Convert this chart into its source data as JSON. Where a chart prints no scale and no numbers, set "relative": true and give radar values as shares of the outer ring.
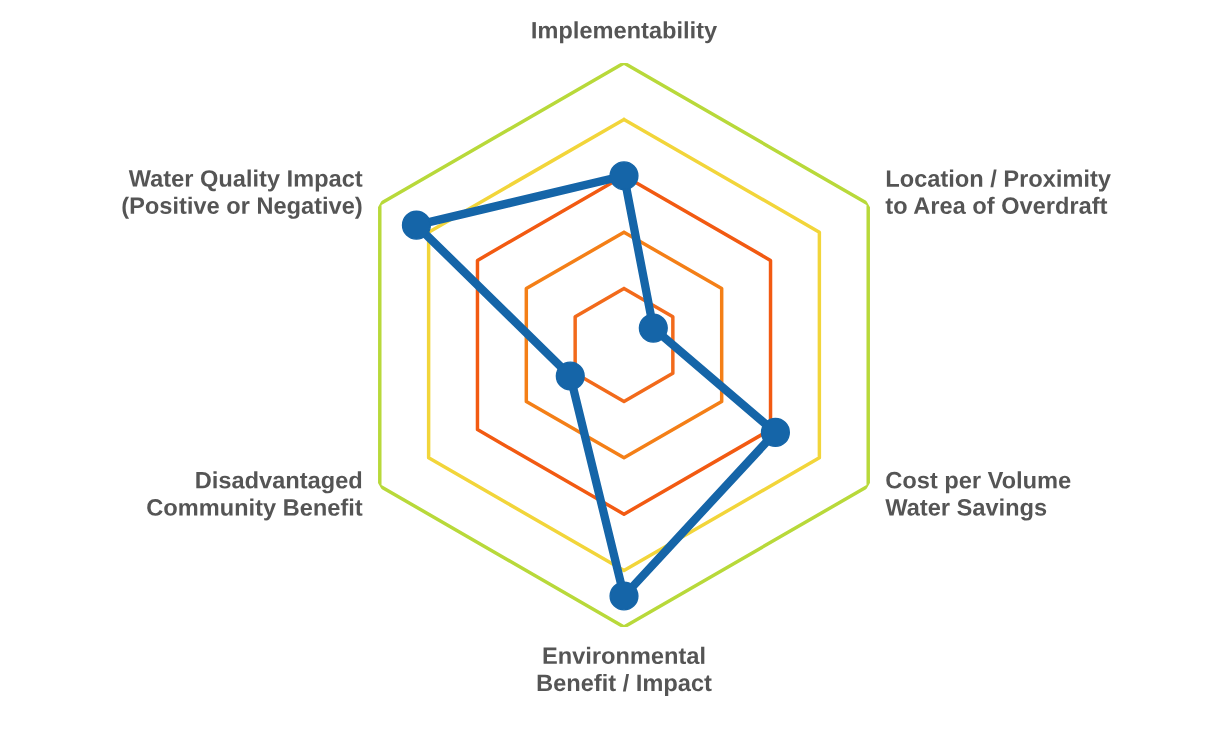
{
  "chart_data": {
    "type": "radar",
    "relative": true,
    "categories": [
      "Implementability",
      "Location / Proximity\nto Area of Overdraft",
      "Cost per Volume\nWater Savings",
      "Environmental\nBenefit / Impact",
      "Disadvantaged\nCommunity Benefit",
      "Water Quality Impact\n(Positive or Negative)"
    ],
    "series": [
      {
        "color": "#1565a8",
        "values": [
          0.6,
          0.12,
          0.62,
          0.89,
          0.22,
          0.85
        ]
      }
    ],
    "grid": true,
    "marker": "circle",
    "line_style": "solid"
  }
}
